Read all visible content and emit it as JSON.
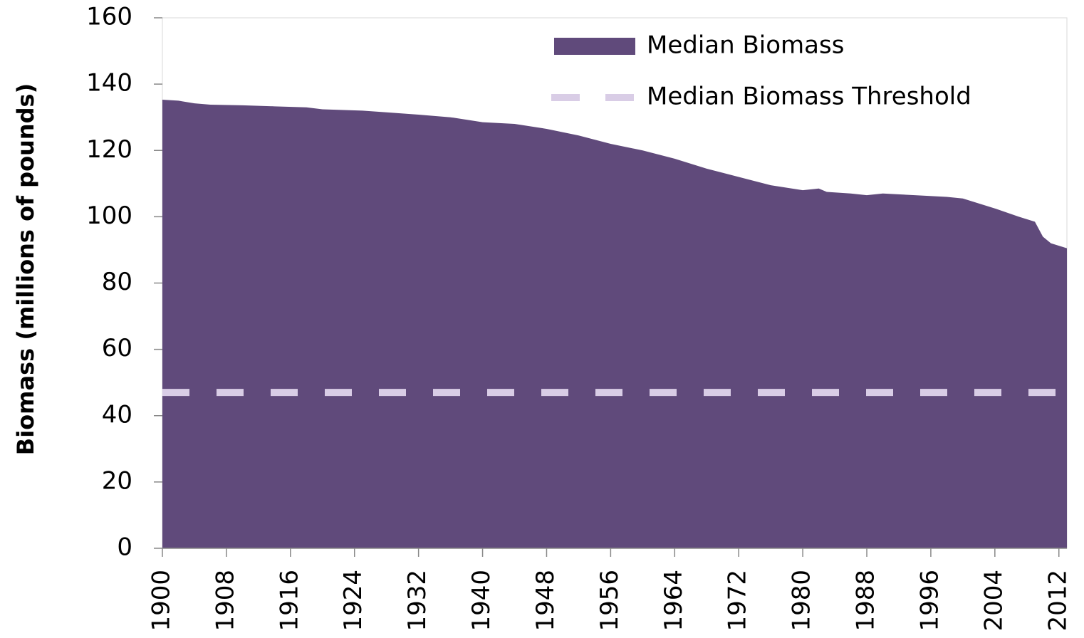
{
  "chart_data": {
    "type": "area",
    "ylabel": "Biomass (millions of pounds)",
    "xlim": [
      1900,
      2013
    ],
    "xticks": [
      1900,
      1908,
      1916,
      1924,
      1932,
      1940,
      1948,
      1956,
      1964,
      1972,
      1980,
      1988,
      1996,
      2004,
      2012
    ],
    "ylim": [
      0,
      160
    ],
    "yticks": [
      0,
      20,
      40,
      60,
      80,
      100,
      120,
      140,
      160
    ],
    "legend": "upper right",
    "series": [
      {
        "name": "Median Biomass",
        "color": "#604a7b",
        "kind": "area",
        "x": [
          1900,
          1902,
          1904,
          1906,
          1910,
          1914,
          1918,
          1920,
          1925,
          1928,
          1932,
          1936,
          1940,
          1944,
          1948,
          1952,
          1956,
          1960,
          1964,
          1968,
          1972,
          1976,
          1980,
          1982,
          1983,
          1986,
          1988,
          1990,
          1994,
          1998,
          2000,
          2002,
          2004,
          2007,
          2009,
          2010,
          2011,
          2013
        ],
        "values": [
          135.3,
          135,
          134.2,
          133.8,
          133.6,
          133.3,
          133,
          132.4,
          132,
          131.5,
          130.8,
          130,
          128.5,
          128,
          126.5,
          124.5,
          122,
          120,
          117.5,
          114.5,
          112,
          109.5,
          108,
          108.5,
          107.5,
          107,
          106.5,
          107,
          106.5,
          106,
          105.5,
          104,
          102.5,
          100,
          98.5,
          94,
          92,
          90.5
        ]
      },
      {
        "name": "Median Biomass Threshold",
        "color": "#d9cde6",
        "kind": "dashed-line",
        "x": [
          1900,
          2013
        ],
        "values": [
          47,
          47
        ]
      }
    ]
  }
}
